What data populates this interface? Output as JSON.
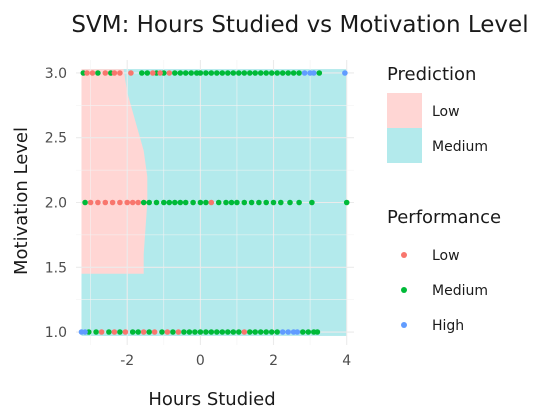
{
  "chart_data": {
    "type": "scatter",
    "title": "SVM: Hours Studied vs Motivation Level",
    "xlabel": "Hours Studied",
    "ylabel": "Motivation Level",
    "xlim": [
      -3.4,
      4.2
    ],
    "ylim": [
      0.9,
      3.1
    ],
    "x_ticks": [
      -2,
      0,
      2,
      4
    ],
    "y_ticks": [
      1.0,
      1.5,
      2.0,
      2.5,
      3.0
    ],
    "x_tick_labels": [
      "-2",
      "0",
      "2",
      "4"
    ],
    "y_tick_labels": [
      "1.0",
      "1.5",
      "2.0",
      "2.5",
      "3.0"
    ],
    "grid": true,
    "legend_position": "right",
    "prediction_legend": {
      "title": "Prediction",
      "entries": [
        {
          "label": "Low",
          "color": "#ffd6d4"
        },
        {
          "label": "Medium",
          "color": "#b3eaec"
        }
      ]
    },
    "performance_legend": {
      "title": "Performance",
      "entries": [
        {
          "label": "Low",
          "color": "#f8766d"
        },
        {
          "label": "Medium",
          "color": "#00ba38"
        },
        {
          "label": "High",
          "color": "#619cff"
        }
      ]
    },
    "decision_region": {
      "background": "Medium",
      "low_region_boundary": [
        {
          "y": 3.0,
          "x": -2.1
        },
        {
          "y": 2.85,
          "x": -2.0
        },
        {
          "y": 2.7,
          "x": -1.85
        },
        {
          "y": 2.55,
          "x": -1.7
        },
        {
          "y": 2.4,
          "x": -1.55
        },
        {
          "y": 2.2,
          "x": -1.45
        },
        {
          "y": 2.0,
          "x": -1.45
        },
        {
          "y": 1.8,
          "x": -1.5
        },
        {
          "y": 1.6,
          "x": -1.55
        },
        {
          "y": 1.45,
          "x": -1.55
        }
      ]
    },
    "series": [
      {
        "name": "Low",
        "points": [
          {
            "x": -3.1,
            "y": 3.0
          },
          {
            "x": -2.95,
            "y": 3.0
          },
          {
            "x": -2.6,
            "y": 3.0
          },
          {
            "x": -2.35,
            "y": 3.0
          },
          {
            "x": -2.2,
            "y": 3.0
          },
          {
            "x": -1.9,
            "y": 3.0
          },
          {
            "x": -1.3,
            "y": 3.0
          },
          {
            "x": -1.1,
            "y": 3.0
          },
          {
            "x": -0.85,
            "y": 3.0
          },
          {
            "x": -3.0,
            "y": 2.0
          },
          {
            "x": -2.8,
            "y": 2.0
          },
          {
            "x": -2.6,
            "y": 2.0
          },
          {
            "x": -2.4,
            "y": 2.0
          },
          {
            "x": -2.2,
            "y": 2.0
          },
          {
            "x": -2.0,
            "y": 2.0
          },
          {
            "x": -1.85,
            "y": 2.0
          },
          {
            "x": -1.7,
            "y": 2.0
          },
          {
            "x": 0.3,
            "y": 2.0
          },
          {
            "x": -2.7,
            "y": 1.0
          },
          {
            "x": -2.35,
            "y": 1.0
          },
          {
            "x": -2.05,
            "y": 1.0
          },
          {
            "x": -1.55,
            "y": 1.0
          },
          {
            "x": -1.25,
            "y": 1.0
          },
          {
            "x": -0.9,
            "y": 1.0
          },
          {
            "x": -0.6,
            "y": 1.0
          },
          {
            "x": 1.2,
            "y": 1.0
          }
        ]
      },
      {
        "name": "Medium",
        "points": [
          {
            "x": -3.2,
            "y": 3.0
          },
          {
            "x": -2.8,
            "y": 3.0
          },
          {
            "x": -2.45,
            "y": 3.0
          },
          {
            "x": -1.6,
            "y": 3.0
          },
          {
            "x": -1.45,
            "y": 3.0
          },
          {
            "x": -1.2,
            "y": 3.0
          },
          {
            "x": -1.0,
            "y": 3.0
          },
          {
            "x": -0.7,
            "y": 3.0
          },
          {
            "x": -0.55,
            "y": 3.0
          },
          {
            "x": -0.4,
            "y": 3.0
          },
          {
            "x": -0.25,
            "y": 3.0
          },
          {
            "x": -0.1,
            "y": 3.0
          },
          {
            "x": 0.0,
            "y": 3.0
          },
          {
            "x": 0.15,
            "y": 3.0
          },
          {
            "x": 0.3,
            "y": 3.0
          },
          {
            "x": 0.45,
            "y": 3.0
          },
          {
            "x": 0.6,
            "y": 3.0
          },
          {
            "x": 0.75,
            "y": 3.0
          },
          {
            "x": 0.9,
            "y": 3.0
          },
          {
            "x": 1.05,
            "y": 3.0
          },
          {
            "x": 1.2,
            "y": 3.0
          },
          {
            "x": 1.35,
            "y": 3.0
          },
          {
            "x": 1.5,
            "y": 3.0
          },
          {
            "x": 1.65,
            "y": 3.0
          },
          {
            "x": 1.8,
            "y": 3.0
          },
          {
            "x": 1.95,
            "y": 3.0
          },
          {
            "x": 2.1,
            "y": 3.0
          },
          {
            "x": 2.25,
            "y": 3.0
          },
          {
            "x": 2.4,
            "y": 3.0
          },
          {
            "x": 2.55,
            "y": 3.0
          },
          {
            "x": 2.7,
            "y": 3.0
          },
          {
            "x": 3.25,
            "y": 3.0
          },
          {
            "x": -3.15,
            "y": 2.0
          },
          {
            "x": -1.55,
            "y": 2.0
          },
          {
            "x": -1.4,
            "y": 2.0
          },
          {
            "x": -1.2,
            "y": 2.0
          },
          {
            "x": -1.0,
            "y": 2.0
          },
          {
            "x": -0.85,
            "y": 2.0
          },
          {
            "x": -0.7,
            "y": 2.0
          },
          {
            "x": -0.55,
            "y": 2.0
          },
          {
            "x": -0.4,
            "y": 2.0
          },
          {
            "x": -0.2,
            "y": 2.0
          },
          {
            "x": 0.0,
            "y": 2.0
          },
          {
            "x": 0.15,
            "y": 2.0
          },
          {
            "x": 0.5,
            "y": 2.0
          },
          {
            "x": 0.7,
            "y": 2.0
          },
          {
            "x": 0.85,
            "y": 2.0
          },
          {
            "x": 1.0,
            "y": 2.0
          },
          {
            "x": 1.2,
            "y": 2.0
          },
          {
            "x": 1.4,
            "y": 2.0
          },
          {
            "x": 1.6,
            "y": 2.0
          },
          {
            "x": 1.8,
            "y": 2.0
          },
          {
            "x": 2.0,
            "y": 2.0
          },
          {
            "x": 2.2,
            "y": 2.0
          },
          {
            "x": 2.45,
            "y": 2.0
          },
          {
            "x": 2.7,
            "y": 2.0
          },
          {
            "x": 3.05,
            "y": 2.0
          },
          {
            "x": 4.0,
            "y": 2.0
          },
          {
            "x": -3.05,
            "y": 1.0
          },
          {
            "x": -2.85,
            "y": 1.0
          },
          {
            "x": -2.5,
            "y": 1.0
          },
          {
            "x": -2.2,
            "y": 1.0
          },
          {
            "x": -1.85,
            "y": 1.0
          },
          {
            "x": -1.7,
            "y": 1.0
          },
          {
            "x": -1.4,
            "y": 1.0
          },
          {
            "x": -1.05,
            "y": 1.0
          },
          {
            "x": -0.75,
            "y": 1.0
          },
          {
            "x": -0.45,
            "y": 1.0
          },
          {
            "x": -0.3,
            "y": 1.0
          },
          {
            "x": -0.15,
            "y": 1.0
          },
          {
            "x": 0.0,
            "y": 1.0
          },
          {
            "x": 0.15,
            "y": 1.0
          },
          {
            "x": 0.3,
            "y": 1.0
          },
          {
            "x": 0.45,
            "y": 1.0
          },
          {
            "x": 0.6,
            "y": 1.0
          },
          {
            "x": 0.75,
            "y": 1.0
          },
          {
            "x": 0.9,
            "y": 1.0
          },
          {
            "x": 1.05,
            "y": 1.0
          },
          {
            "x": 1.35,
            "y": 1.0
          },
          {
            "x": 1.5,
            "y": 1.0
          },
          {
            "x": 1.65,
            "y": 1.0
          },
          {
            "x": 1.8,
            "y": 1.0
          },
          {
            "x": 1.95,
            "y": 1.0
          },
          {
            "x": 2.1,
            "y": 1.0
          },
          {
            "x": 2.8,
            "y": 1.0
          },
          {
            "x": 2.95,
            "y": 1.0
          },
          {
            "x": 3.1,
            "y": 1.0
          },
          {
            "x": 3.2,
            "y": 1.0
          }
        ]
      },
      {
        "name": "High",
        "points": [
          {
            "x": 2.85,
            "y": 3.0
          },
          {
            "x": 3.0,
            "y": 3.0
          },
          {
            "x": 3.1,
            "y": 3.0
          },
          {
            "x": 3.95,
            "y": 3.0
          },
          {
            "x": -3.25,
            "y": 1.0
          },
          {
            "x": -3.15,
            "y": 1.0
          },
          {
            "x": 2.25,
            "y": 1.0
          },
          {
            "x": 2.4,
            "y": 1.0
          },
          {
            "x": 2.55,
            "y": 1.0
          },
          {
            "x": 2.65,
            "y": 1.0
          }
        ]
      }
    ]
  }
}
